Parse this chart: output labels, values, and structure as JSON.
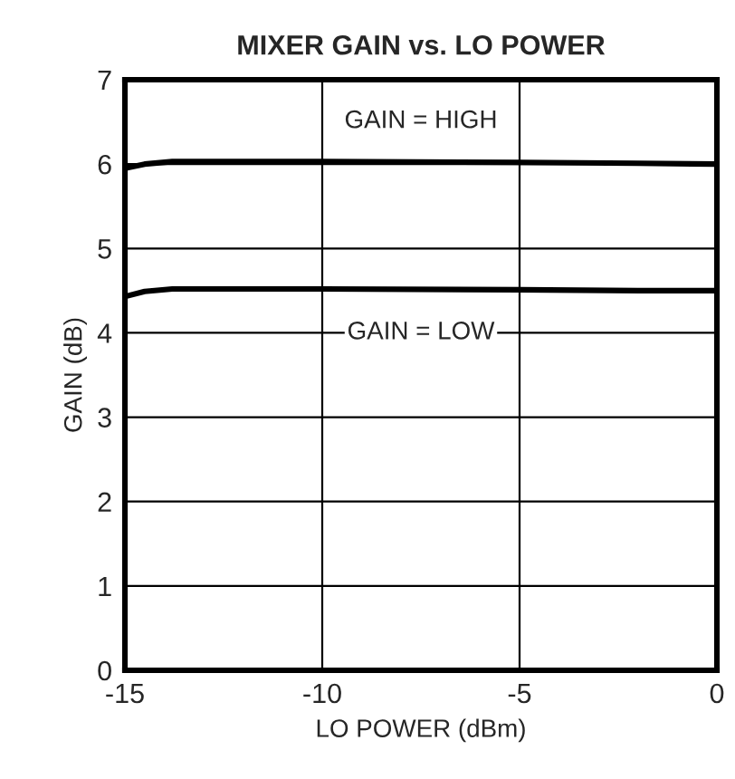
{
  "chart_data": {
    "type": "line",
    "title": "MIXER GAIN vs. LO POWER",
    "xlabel": "LO POWER (dBm)",
    "ylabel": "GAIN (dB)",
    "xlim": [
      -15,
      0
    ],
    "xticks": [
      -15,
      -10,
      -5,
      0
    ],
    "ylim": [
      0,
      7
    ],
    "yticks": [
      0,
      1,
      2,
      3,
      4,
      5,
      6,
      7
    ],
    "grid": true,
    "legend": false,
    "series": [
      {
        "name": "GAIN = HIGH",
        "color": "#000000",
        "x": [
          -15,
          -14.5,
          -13.8,
          -12,
          -10,
          -5,
          -2,
          0
        ],
        "values": [
          5.95,
          6.0,
          6.03,
          6.03,
          6.03,
          6.02,
          6.01,
          6.0
        ]
      },
      {
        "name": "GAIN = LOW",
        "color": "#000000",
        "x": [
          -15,
          -14.5,
          -13.8,
          -12,
          -10,
          -5,
          -2,
          0
        ],
        "values": [
          4.43,
          4.49,
          4.52,
          4.52,
          4.52,
          4.51,
          4.5,
          4.5
        ]
      }
    ]
  }
}
